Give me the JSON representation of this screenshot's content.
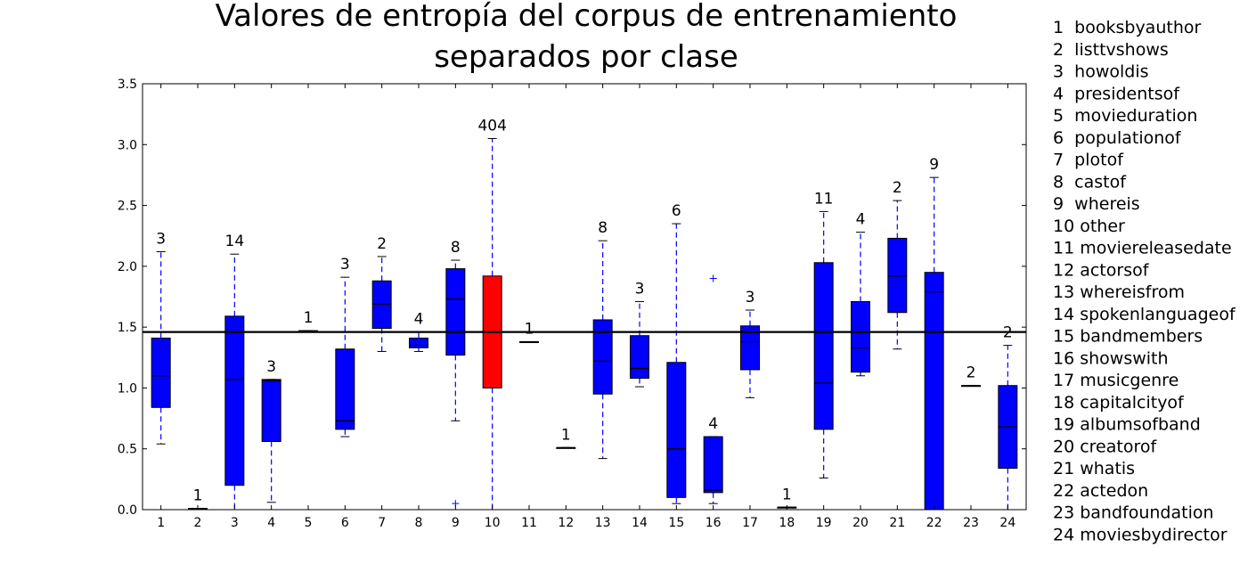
{
  "chart_data": {
    "type": "box",
    "title_lines": [
      "Valores de entropía del corpus de entrenamiento",
      "separados por clase"
    ],
    "xlabel": "",
    "ylabel": "",
    "ylim": [
      0,
      3.5
    ],
    "yticks": [
      "0.0",
      "0.5",
      "1.0",
      "1.5",
      "2.0",
      "2.5",
      "3.0",
      "3.5"
    ],
    "reference_line": 1.46,
    "grid": false,
    "legend_position": "right, outside plot",
    "colors": {
      "box": "#0000ff",
      "highlight": "#ff0000",
      "whisker": "#0000ff",
      "median": "#000000",
      "reference": "#000000"
    },
    "categories": [
      "1",
      "2",
      "3",
      "4",
      "5",
      "6",
      "7",
      "8",
      "9",
      "10",
      "11",
      "12",
      "13",
      "14",
      "15",
      "16",
      "17",
      "18",
      "19",
      "20",
      "21",
      "22",
      "23",
      "24"
    ],
    "legend": [
      "1  booksbyauthor",
      "2  listtvshows",
      "3  howoldis",
      "4  presidentsof",
      "5  movieduration",
      "6  populationof",
      "7  plotof",
      "8  castof",
      "9  whereis",
      "10 other",
      "11 moviereleasedate",
      "12 actorsof",
      "13 whereisfrom",
      "14 spokenlanguageof",
      "15 bandmembers",
      "16 showswith",
      "17 musicgenre",
      "18 capitalcityof",
      "19 albumsofband",
      "20 creatorof",
      "21 whatis",
      "22 actedon",
      "23 bandfoundation",
      "24 moviesbydirector"
    ],
    "boxes": [
      {
        "category": "1",
        "count": "3",
        "whisker_low": 0.54,
        "q1": 0.84,
        "median": 1.1,
        "q3": 1.41,
        "whisker_high": 2.12,
        "outliers": [],
        "highlight": false
      },
      {
        "category": "2",
        "count": "1",
        "whisker_low": 0.01,
        "q1": 0.01,
        "median": 0.01,
        "q3": 0.01,
        "whisker_high": 0.01,
        "outliers": [],
        "highlight": false
      },
      {
        "category": "3",
        "count": "14",
        "whisker_low": 0.0,
        "q1": 0.2,
        "median": 1.07,
        "q3": 1.59,
        "whisker_high": 2.1,
        "outliers": [],
        "highlight": false
      },
      {
        "category": "4",
        "count": "3",
        "whisker_low": 0.06,
        "q1": 0.56,
        "median": 1.06,
        "q3": 1.07,
        "whisker_high": 1.07,
        "outliers": [],
        "highlight": false
      },
      {
        "category": "5",
        "count": "1",
        "whisker_low": 1.47,
        "q1": 1.47,
        "median": 1.47,
        "q3": 1.47,
        "whisker_high": 1.47,
        "outliers": [],
        "highlight": false
      },
      {
        "category": "6",
        "count": "3",
        "whisker_low": 0.6,
        "q1": 0.66,
        "median": 0.73,
        "q3": 1.32,
        "whisker_high": 1.91,
        "outliers": [],
        "highlight": false
      },
      {
        "category": "7",
        "count": "2",
        "whisker_low": 1.3,
        "q1": 1.49,
        "median": 1.69,
        "q3": 1.88,
        "whisker_high": 2.08,
        "outliers": [],
        "highlight": false
      },
      {
        "category": "8",
        "count": "4",
        "whisker_low": 1.3,
        "q1": 1.33,
        "median": 1.35,
        "q3": 1.41,
        "whisker_high": 1.46,
        "outliers": [],
        "highlight": false
      },
      {
        "category": "9",
        "count": "8",
        "whisker_low": 0.73,
        "q1": 1.27,
        "median": 1.73,
        "q3": 1.98,
        "whisker_high": 2.05,
        "outliers": [
          0.05
        ],
        "highlight": false
      },
      {
        "category": "10",
        "count": "404",
        "whisker_low": 0.0,
        "q1": 1.0,
        "median": 1.46,
        "q3": 1.92,
        "whisker_high": 3.05,
        "outliers": [],
        "highlight": true
      },
      {
        "category": "11",
        "count": "1",
        "whisker_low": 1.38,
        "q1": 1.38,
        "median": 1.38,
        "q3": 1.38,
        "whisker_high": 1.38,
        "outliers": [],
        "highlight": false
      },
      {
        "category": "12",
        "count": "1",
        "whisker_low": 0.51,
        "q1": 0.51,
        "median": 0.51,
        "q3": 0.51,
        "whisker_high": 0.51,
        "outliers": [],
        "highlight": false
      },
      {
        "category": "13",
        "count": "8",
        "whisker_low": 0.42,
        "q1": 0.95,
        "median": 1.22,
        "q3": 1.56,
        "whisker_high": 2.21,
        "outliers": [],
        "highlight": false
      },
      {
        "category": "14",
        "count": "3",
        "whisker_low": 1.01,
        "q1": 1.08,
        "median": 1.16,
        "q3": 1.43,
        "whisker_high": 1.71,
        "outliers": [],
        "highlight": false
      },
      {
        "category": "15",
        "count": "6",
        "whisker_low": 0.05,
        "q1": 0.1,
        "median": 0.5,
        "q3": 1.21,
        "whisker_high": 2.35,
        "outliers": [],
        "highlight": false
      },
      {
        "category": "16",
        "count": "4",
        "whisker_low": 0.05,
        "q1": 0.14,
        "median": 0.16,
        "q3": 0.6,
        "whisker_high": 0.6,
        "outliers": [
          1.9
        ],
        "highlight": false
      },
      {
        "category": "17",
        "count": "3",
        "whisker_low": 0.92,
        "q1": 1.15,
        "median": 1.38,
        "q3": 1.51,
        "whisker_high": 1.64,
        "outliers": [],
        "highlight": false
      },
      {
        "category": "18",
        "count": "1",
        "whisker_low": 0.02,
        "q1": 0.02,
        "median": 0.02,
        "q3": 0.02,
        "whisker_high": 0.02,
        "outliers": [],
        "highlight": false
      },
      {
        "category": "19",
        "count": "11",
        "whisker_low": 0.26,
        "q1": 0.66,
        "median": 1.04,
        "q3": 2.03,
        "whisker_high": 2.45,
        "outliers": [],
        "highlight": false
      },
      {
        "category": "20",
        "count": "4",
        "whisker_low": 1.1,
        "q1": 1.13,
        "median": 1.33,
        "q3": 1.71,
        "whisker_high": 2.28,
        "outliers": [],
        "highlight": false
      },
      {
        "category": "21",
        "count": "2",
        "whisker_low": 1.32,
        "q1": 1.62,
        "median": 1.92,
        "q3": 2.23,
        "whisker_high": 2.54,
        "outliers": [],
        "highlight": false
      },
      {
        "category": "22",
        "count": "9",
        "whisker_low": 0.0,
        "q1": 0.0,
        "median": 1.79,
        "q3": 1.95,
        "whisker_high": 2.73,
        "outliers": [],
        "highlight": false
      },
      {
        "category": "23",
        "count": "2",
        "whisker_low": 1.02,
        "q1": 1.02,
        "median": 1.02,
        "q3": 1.02,
        "whisker_high": 1.02,
        "outliers": [],
        "highlight": false
      },
      {
        "category": "24",
        "count": "2",
        "whisker_low": 0.0,
        "q1": 0.34,
        "median": 0.68,
        "q3": 1.02,
        "whisker_high": 1.35,
        "outliers": [],
        "highlight": false
      }
    ]
  }
}
